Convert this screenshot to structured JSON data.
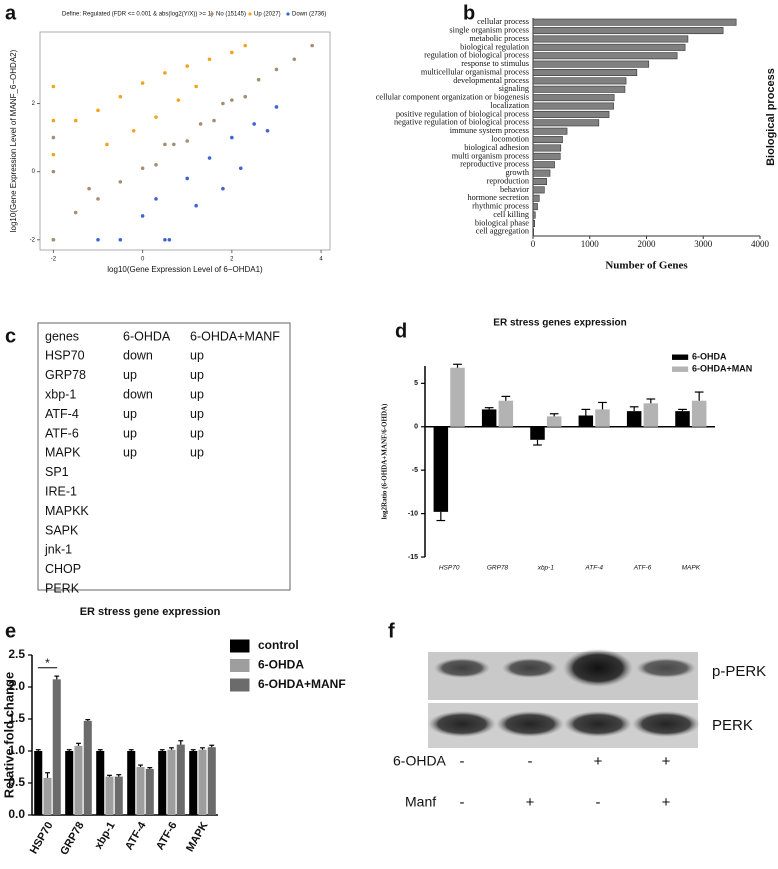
{
  "chart_data": [
    {
      "type": "scatter",
      "panel": "a",
      "title": "Define: Regulated (FDR <= 0.001 & abs(log2(Y/X)) >= 1)",
      "x_label": "log10(Gene Expression Level of 6−OHDA1)",
      "y_label": "log10(Gene Expression Level of MANF_6−OHDA2)",
      "xlim": [
        -2.3,
        4.2
      ],
      "xticks": [
        -2,
        0,
        2,
        4
      ],
      "ylim": [
        -2.3,
        4.1
      ],
      "yticks": [
        -2,
        0,
        2
      ],
      "series": [
        {
          "name": "No (15145)",
          "color": "#a58e74",
          "x": [
            -2,
            -2,
            -2,
            -1.5,
            -1,
            -0.5,
            0,
            0.3,
            0.7,
            1,
            1.3,
            1.6,
            2,
            2.3,
            2.6,
            3,
            3.4,
            3.8,
            -2,
            -1.2,
            0.5,
            1.8
          ],
          "values": [
            -2,
            0,
            1,
            -1.2,
            -0.8,
            -0.3,
            0.1,
            0.2,
            0.8,
            0.9,
            1.4,
            1.5,
            2.1,
            2.2,
            2.7,
            3,
            3.3,
            3.7,
            -2,
            -0.5,
            0.8,
            2
          ]
        },
        {
          "name": "Up (2027)",
          "color": "#f2a31f",
          "x": [
            -2,
            -2,
            -2,
            -1.5,
            -1,
            -0.8,
            -0.5,
            -0.2,
            0,
            0.3,
            0.5,
            0.8,
            1,
            1.2,
            1.5,
            2,
            2.3
          ],
          "values": [
            0.5,
            1.5,
            2.5,
            1.5,
            1.8,
            0.8,
            2.2,
            1.2,
            2.6,
            1.6,
            2.9,
            2.1,
            3.1,
            2.5,
            3.3,
            3.5,
            3.7
          ]
        },
        {
          "name": "Down (2736)",
          "color": "#3f63d6",
          "x": [
            -0.5,
            0,
            0.3,
            0.6,
            1,
            1.2,
            1.5,
            1.8,
            2,
            2.2,
            2.5,
            2.8,
            3,
            -1,
            0.5
          ],
          "values": [
            -2,
            -1.3,
            -0.8,
            -2,
            -0.2,
            -1,
            0.4,
            -0.5,
            1,
            0.1,
            1.4,
            1.2,
            1.9,
            -2,
            -2
          ]
        }
      ]
    },
    {
      "type": "hbar",
      "panel": "b",
      "x_label": "Number of Genes",
      "y_label": "Biological process",
      "color": "#808080",
      "categories": [
        "cellular process",
        "single organism process",
        "metabolic process",
        "biological regulation",
        "regulation of biological process",
        "response to stimulus",
        "multicellular organismal process",
        "developmental process",
        "signaling",
        "cellular component organization or biogenesis",
        "localization",
        "positive regulation of biological process",
        "negative regulation of biological process",
        "immune system process",
        "locomotion",
        "biological adhesion",
        "multi organism process",
        "reproductive process",
        "growth",
        "reproduction",
        "behavior",
        "hormone secretion",
        "rhythmic process",
        "cell killing",
        "biological phase",
        "cell aggregation"
      ],
      "values": [
        3580,
        3350,
        2730,
        2680,
        2540,
        2040,
        1830,
        1640,
        1620,
        1430,
        1420,
        1340,
        1160,
        600,
        520,
        490,
        480,
        380,
        300,
        240,
        200,
        110,
        80,
        40,
        30,
        10
      ],
      "xlim": [
        0,
        4000
      ],
      "xticks": [
        0,
        1000,
        2000,
        3000,
        4000
      ]
    },
    {
      "type": "bar",
      "panel": "d",
      "title": "ER stress genes expression",
      "y_label": "log2Ratio (6-OHDA+MANF/6-OHDA)",
      "categories": [
        "HSP70",
        "GRP78",
        "xbp-1",
        "ATF-4",
        "ATF-6",
        "MAPK"
      ],
      "ylim": [
        -15,
        7
      ],
      "yticks": [
        5,
        0,
        -5,
        -10,
        -15
      ],
      "series": [
        {
          "name": "6-OHDA",
          "color": "#000000",
          "values": [
            -9.8,
            2,
            -1.5,
            1.3,
            1.8,
            1.8
          ],
          "errors": [
            1,
            0.2,
            0.6,
            0.7,
            0.5,
            0.2
          ]
        },
        {
          "name": "6-OHDA+MAN",
          "color": "#b3b3b3",
          "values": [
            6.8,
            3,
            1.2,
            2,
            2.7,
            3
          ],
          "errors": [
            0.4,
            0.5,
            0.3,
            0.8,
            0.5,
            1
          ]
        }
      ]
    },
    {
      "type": "bar",
      "panel": "e",
      "title": "ER stress gene expression",
      "y_label": "Relative fold change",
      "annotation": "*",
      "categories": [
        "HSP70",
        "GRP78",
        "xbp-1",
        "ATF-4",
        "ATF-6",
        "MAPK"
      ],
      "ylim": [
        0,
        2.5
      ],
      "yticks": [
        {
          "value": 0,
          "label": "0.0"
        },
        {
          "value": 0.5,
          "label": "0.5"
        },
        {
          "value": 1,
          "label": "1.0"
        },
        {
          "value": 1.5,
          "label": "1.5"
        },
        {
          "value": 2,
          "label": "2.0"
        },
        {
          "value": 2.5,
          "label": "2.5"
        }
      ],
      "series": [
        {
          "name": "control",
          "color": "#000000",
          "values": [
            1,
            1,
            1,
            1,
            1,
            1
          ],
          "errors": [
            0.02,
            0.02,
            0.02,
            0.02,
            0.02,
            0.02
          ]
        },
        {
          "name": "6-OHDA",
          "color": "#9e9e9e",
          "values": [
            0.58,
            1.08,
            0.6,
            0.75,
            1.02,
            1.02
          ],
          "errors": [
            0.08,
            0.04,
            0.02,
            0.03,
            0.03,
            0.03
          ]
        },
        {
          "name": "6-OHDA+MANF",
          "color": "#6b6b6b",
          "values": [
            2.12,
            1.47,
            0.6,
            0.72,
            1.1,
            1.06
          ],
          "errors": [
            0.05,
            0.02,
            0.03,
            0.02,
            0.06,
            0.03
          ]
        }
      ]
    }
  ],
  "table": {
    "panel": "c",
    "header": [
      "genes",
      "6-OHDA",
      "6-OHDA+MANF"
    ],
    "rows": [
      [
        "HSP70",
        "down",
        "up"
      ],
      [
        "GRP78",
        "up",
        "up"
      ],
      [
        "xbp-1",
        "down",
        "up"
      ],
      [
        "ATF-4",
        "up",
        "up"
      ],
      [
        "ATF-6",
        "up",
        "up"
      ],
      [
        "MAPK",
        "up",
        "up"
      ],
      [
        "SP1"
      ],
      [
        "IRE-1"
      ],
      [
        "MAPKK"
      ],
      [
        "SAPK"
      ],
      [
        "jnk-1"
      ],
      [
        "CHOP"
      ],
      [
        "PERK"
      ]
    ]
  },
  "blot": {
    "panel": "f",
    "bands": [
      "p-PERK",
      "PERK"
    ],
    "conditions": [
      {
        "name": "6-OHDA",
        "signs": [
          "-",
          "-",
          "+",
          "+"
        ]
      },
      {
        "name": "Manf",
        "signs": [
          "-",
          "+",
          "-",
          "+"
        ]
      }
    ]
  }
}
